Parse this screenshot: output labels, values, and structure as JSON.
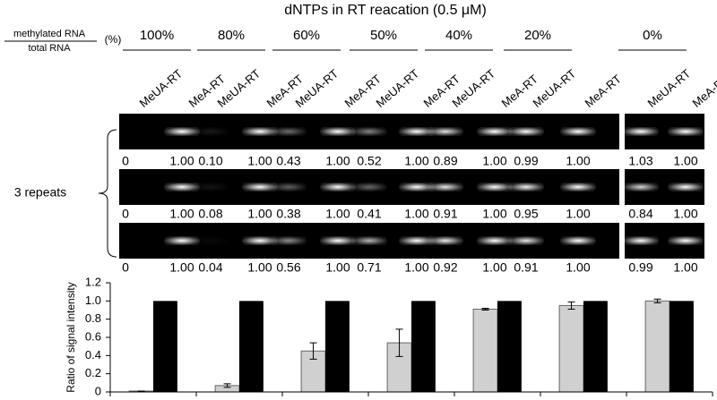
{
  "header": {
    "title": "dNTPs in RT reacation (0.5 μM)",
    "ratio_top": "methylated RNA",
    "ratio_bottom": "total RNA",
    "unit": "(%)",
    "percentages": [
      "100%",
      "80%",
      "60%",
      "50%",
      "40%",
      "20%",
      "0%"
    ]
  },
  "lanes": [
    "MeUA-RT",
    "MeA-RT",
    "MeUA-RT",
    "MeA-RT",
    "MeUA-RT",
    "MeA-RT",
    "MeUA-RT",
    "MeA-RT",
    "MeUA-RT",
    "MeA-RT",
    "MeUA-RT",
    "MeA-RT",
    "MeUA-RT",
    "MeA-RT"
  ],
  "repeats_label": "3 repeats",
  "gel_rows": [
    [
      "0",
      "1.00",
      "0.10",
      "1.00",
      "0.43",
      "1.00",
      "0.52",
      "1.00",
      "0.89",
      "1.00",
      "0.99",
      "1.00",
      "1.03",
      "1.00"
    ],
    [
      "0",
      "1.00",
      "0.08",
      "1.00",
      "0.38",
      "1.00",
      "0.41",
      "1.00",
      "0.91",
      "1.00",
      "0.95",
      "1.00",
      "0.84",
      "1.00"
    ],
    [
      "0",
      "1.00",
      "0.04",
      "1.00",
      "0.56",
      "1.00",
      "0.71",
      "1.00",
      "0.92",
      "1.00",
      "0.91",
      "1.00",
      "0.99",
      "1.00"
    ]
  ],
  "chart_data": {
    "type": "bar",
    "ylabel": "Ratio of signal intensity",
    "categories": [
      null,
      null,
      null,
      null,
      null,
      null,
      null
    ],
    "series": [
      {
        "color": "#d0d0d0",
        "values": [
          0.01,
          0.07,
          0.45,
          0.54,
          0.91,
          0.95,
          1.0
        ],
        "errors": [
          0,
          0.02,
          0.09,
          0.15,
          0.01,
          0.04,
          0.02
        ]
      },
      {
        "color": "#000000",
        "values": [
          1,
          1,
          1,
          1,
          1,
          1,
          1
        ]
      }
    ],
    "ylim": [
      0,
      1.2
    ],
    "yticks": [
      0,
      0.2,
      0.4,
      0.6,
      0.8,
      {
        "value": 1,
        "label": "1.0"
      },
      1.2
    ]
  }
}
